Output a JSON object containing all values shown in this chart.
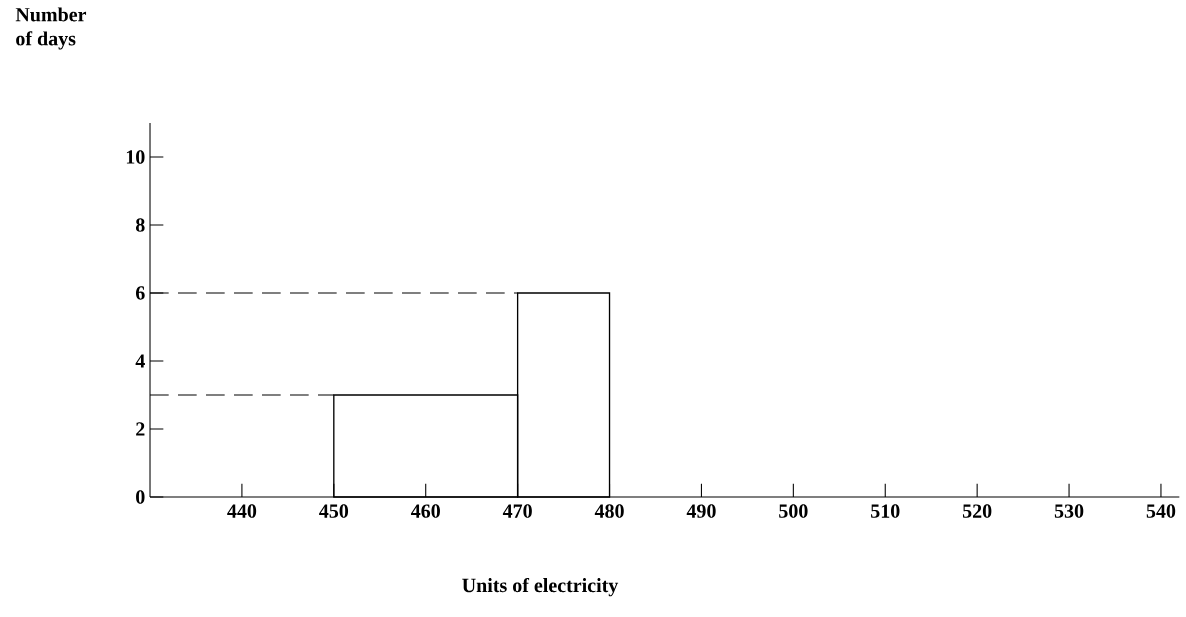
{
  "chart_data": {
    "type": "histogram",
    "xlabel": "Units of electricity",
    "ylabel": "Number of days",
    "bins": [
      450,
      470,
      480
    ],
    "values": [
      3,
      6
    ],
    "color": "#000000",
    "xlim": [
      430,
      542
    ],
    "ylim": [
      0,
      11
    ],
    "xticks": [
      440,
      450,
      460,
      470,
      480,
      490,
      500,
      510,
      520,
      530,
      540
    ],
    "yticks": [
      0,
      2,
      4,
      6,
      8,
      10
    ],
    "ref_lines": [
      {
        "axis": "y",
        "value": 3,
        "line_style": "dashed"
      },
      {
        "axis": "y",
        "value": 6,
        "line_style": "dashed"
      }
    ]
  }
}
